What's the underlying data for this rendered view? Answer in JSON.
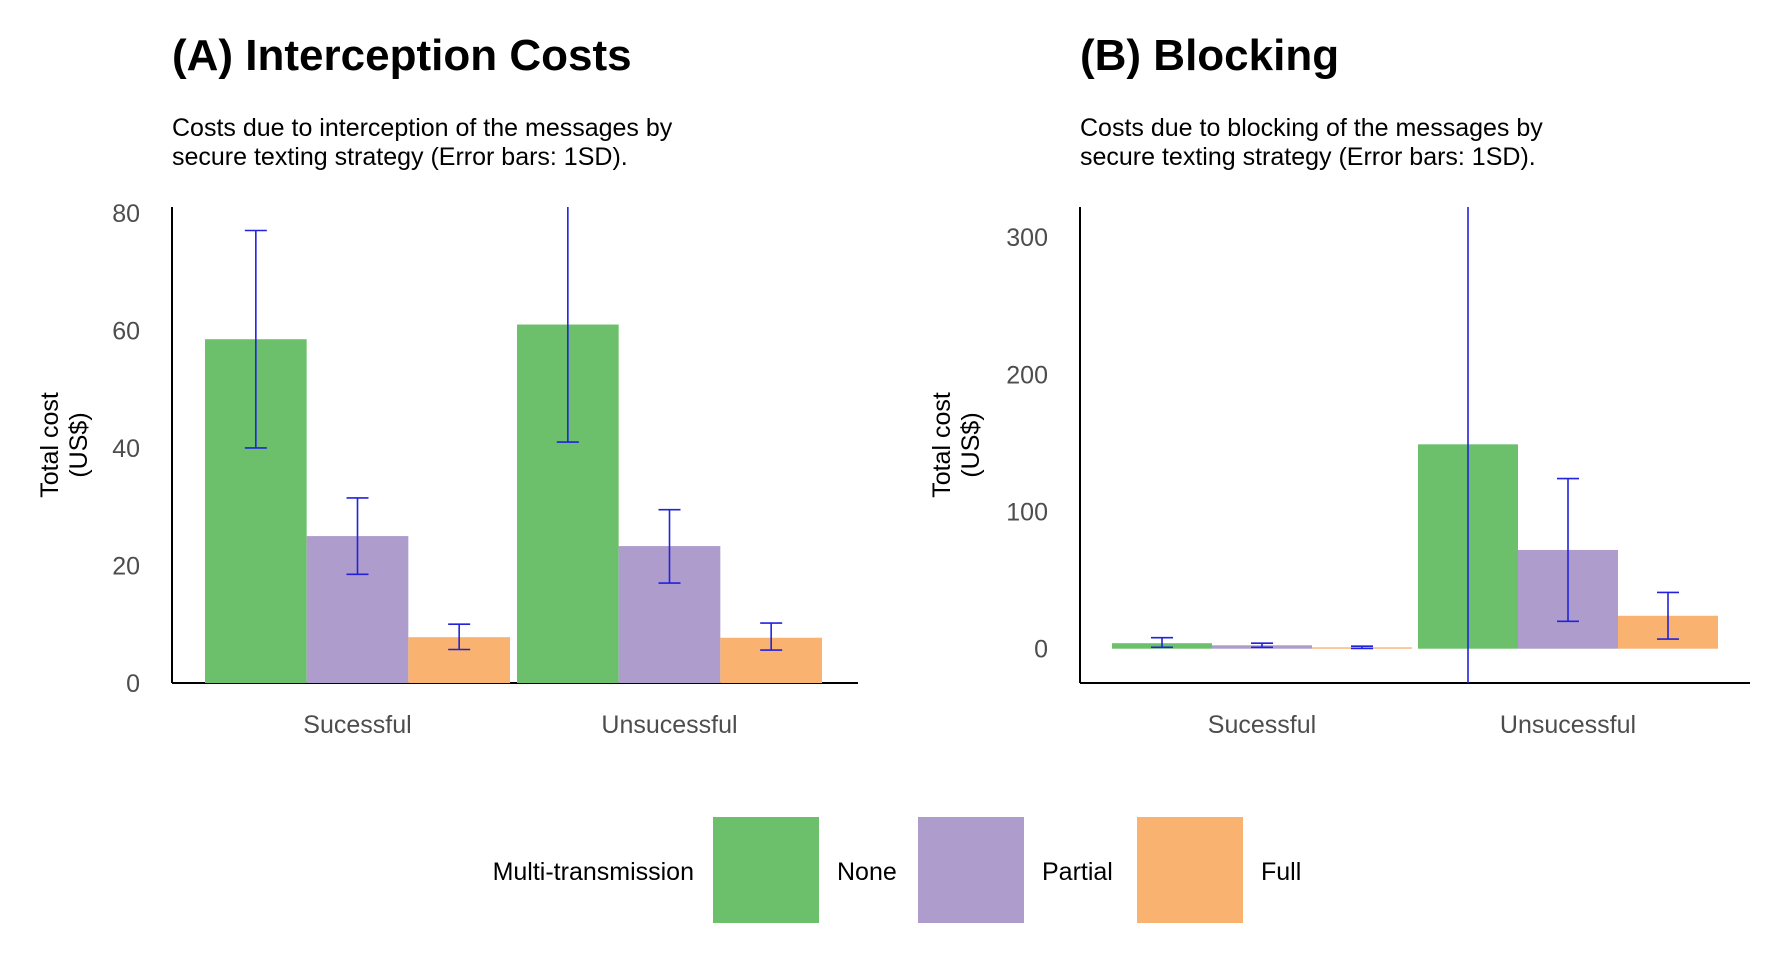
{
  "chart_data": [
    {
      "type": "bar",
      "title": "(A) Interception Costs",
      "subtitle_lines": [
        "Costs due to interception of the messages by",
        "secure texting strategy (Error bars: 1SD)."
      ],
      "ylabel_lines": [
        "Total cost",
        "(US$)"
      ],
      "xlabel": "",
      "categories": [
        "Sucessful",
        "Unsucessful"
      ],
      "yticks": [
        0,
        20,
        40,
        60,
        80
      ],
      "ylim": [
        0,
        81
      ],
      "grid": false,
      "series": [
        {
          "name": "None",
          "values": [
            58.5,
            61
          ],
          "err_low": [
            40,
            41
          ],
          "err_high": [
            77,
            81
          ]
        },
        {
          "name": "Partial",
          "values": [
            25,
            23.3
          ],
          "err_low": [
            18.5,
            17
          ],
          "err_high": [
            31.5,
            29.5
          ]
        },
        {
          "name": "Full",
          "values": [
            7.8,
            7.7
          ],
          "err_low": [
            5.7,
            5.6
          ],
          "err_high": [
            10,
            10.2
          ]
        }
      ]
    },
    {
      "type": "bar",
      "title": "(B) Blocking",
      "subtitle_lines": [
        "Costs due to blocking of the messages by",
        "secure texting strategy (Error bars: 1SD)."
      ],
      "ylabel_lines": [
        "Total cost",
        "(US$)"
      ],
      "xlabel": "",
      "categories": [
        "Sucessful",
        "Unsucessful"
      ],
      "yticks": [
        0,
        100,
        200,
        300
      ],
      "ylim": [
        -25,
        322
      ],
      "grid": false,
      "series": [
        {
          "name": "None",
          "values": [
            4,
            149
          ],
          "err_low": [
            1,
            -25
          ],
          "err_high": [
            8,
            322
          ]
        },
        {
          "name": "Partial",
          "values": [
            2.5,
            72
          ],
          "err_low": [
            1,
            20
          ],
          "err_high": [
            4,
            124
          ]
        },
        {
          "name": "Full",
          "values": [
            1,
            24
          ],
          "err_low": [
            0.2,
            7
          ],
          "err_high": [
            1.8,
            41
          ]
        }
      ]
    }
  ],
  "legend": {
    "title": "Multi-transmission",
    "position": "bottom",
    "items": [
      {
        "label": "None",
        "color": "#6dc06b"
      },
      {
        "label": "Partial",
        "color": "#ad9ccc"
      },
      {
        "label": "Full",
        "color": "#f9b26f"
      }
    ]
  },
  "colors": {
    "error_bar": "#2222dd",
    "axis": "#000000",
    "tick_text": "#4d4d4d"
  }
}
